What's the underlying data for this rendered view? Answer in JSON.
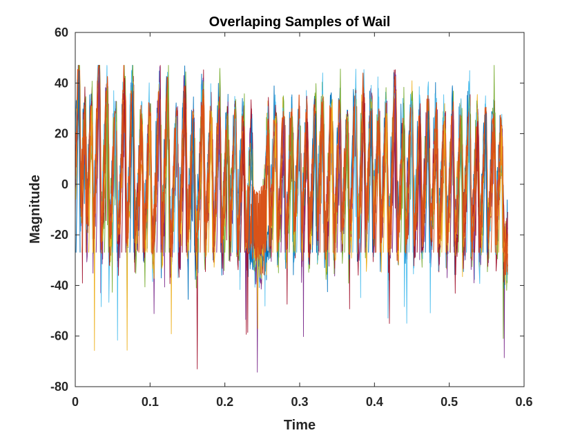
{
  "chart_data": {
    "type": "line",
    "title": "Overlaping Samples of Wail",
    "xlabel": "Time",
    "ylabel": "Magnitude",
    "xlim": [
      0,
      0.6
    ],
    "ylim": [
      -80,
      60
    ],
    "xticks": [
      0,
      0.1,
      0.2,
      0.3,
      0.4,
      0.5,
      0.6
    ],
    "xtick_labels": [
      "0",
      "0.1",
      "0.2",
      "0.3",
      "0.4",
      "0.5",
      "0.6"
    ],
    "yticks": [
      -80,
      -60,
      -40,
      -20,
      0,
      20,
      40,
      60
    ],
    "ytick_labels": [
      "-80",
      "-60",
      "-40",
      "-20",
      "0",
      "20",
      "40",
      "60"
    ],
    "grid": false,
    "legend": "none",
    "x_end": 0.578,
    "noise_floor_center": -27,
    "peak_times": [
      0.005,
      0.013,
      0.022,
      0.032,
      0.043,
      0.054,
      0.066,
      0.077,
      0.089,
      0.1,
      0.113,
      0.124,
      0.136,
      0.147,
      0.158,
      0.171,
      0.182,
      0.193,
      0.204,
      0.214,
      0.225,
      0.236,
      0.258,
      0.268,
      0.279,
      0.29,
      0.3,
      0.31,
      0.321,
      0.331,
      0.343,
      0.354,
      0.364,
      0.375,
      0.386,
      0.396,
      0.406,
      0.416,
      0.428,
      0.439,
      0.45,
      0.461,
      0.472,
      0.483,
      0.494,
      0.505,
      0.516,
      0.527,
      0.538,
      0.549,
      0.56,
      0.57
    ],
    "peak_values": [
      45,
      30,
      31,
      46,
      38,
      28,
      42,
      40,
      26,
      27,
      38,
      38,
      27,
      39,
      26,
      36,
      29,
      30,
      28,
      26,
      25,
      26,
      25,
      27,
      26,
      27,
      26,
      26,
      28,
      34,
      32,
      28,
      26,
      36,
      36,
      30,
      27,
      28,
      39,
      25,
      33,
      27,
      29,
      26,
      27,
      29,
      27,
      31,
      25,
      28,
      27,
      23
    ],
    "series": [
      {
        "color": "#0072BD"
      },
      {
        "color": "#D95319"
      },
      {
        "color": "#EDB120"
      },
      {
        "color": "#7E2F8E"
      },
      {
        "color": "#77AC30"
      },
      {
        "color": "#4DBEEE"
      },
      {
        "color": "#A2142F"
      }
    ]
  }
}
